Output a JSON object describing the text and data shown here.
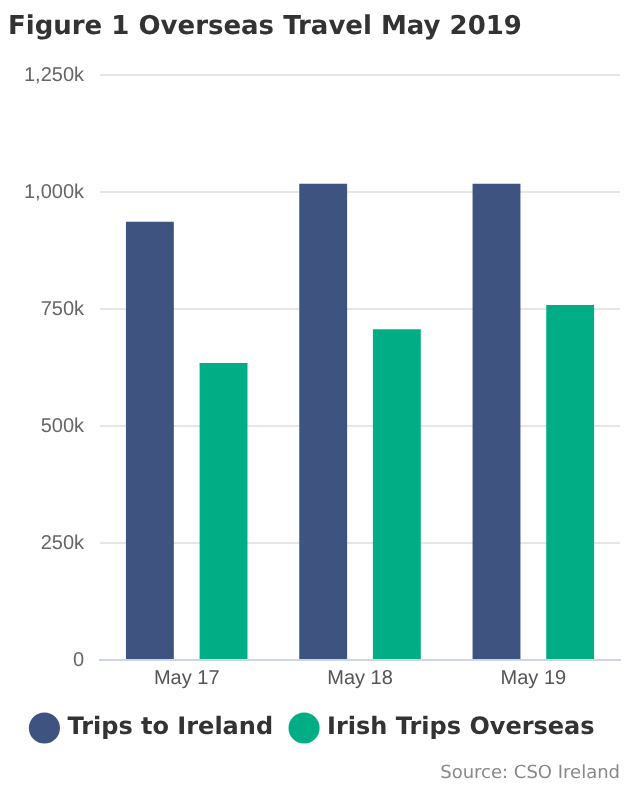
{
  "chart_data": {
    "type": "bar",
    "title": "Figure 1 Overseas Travel May 2019",
    "categories": [
      "May 17",
      "May 18",
      "May 19"
    ],
    "series": [
      {
        "name": "Trips to Ireland",
        "color": "#3e5380",
        "values": [
          937,
          1018,
          1018
        ]
      },
      {
        "name": "Irish Trips Overseas",
        "color": "#00ad85",
        "values": [
          635,
          707,
          759
        ]
      }
    ],
    "ylim": [
      0,
      1250
    ],
    "yticks": [
      {
        "value": 0,
        "label": "0"
      },
      {
        "value": 250,
        "label": "250k"
      },
      {
        "value": 500,
        "label": "500k"
      },
      {
        "value": 750,
        "label": "750k"
      },
      {
        "value": 1000,
        "label": "1,000k"
      },
      {
        "value": 1250,
        "label": "1,250k"
      }
    ],
    "grid": "y",
    "legend": "bottom",
    "annotations": [
      "Source: CSO Ireland"
    ]
  }
}
